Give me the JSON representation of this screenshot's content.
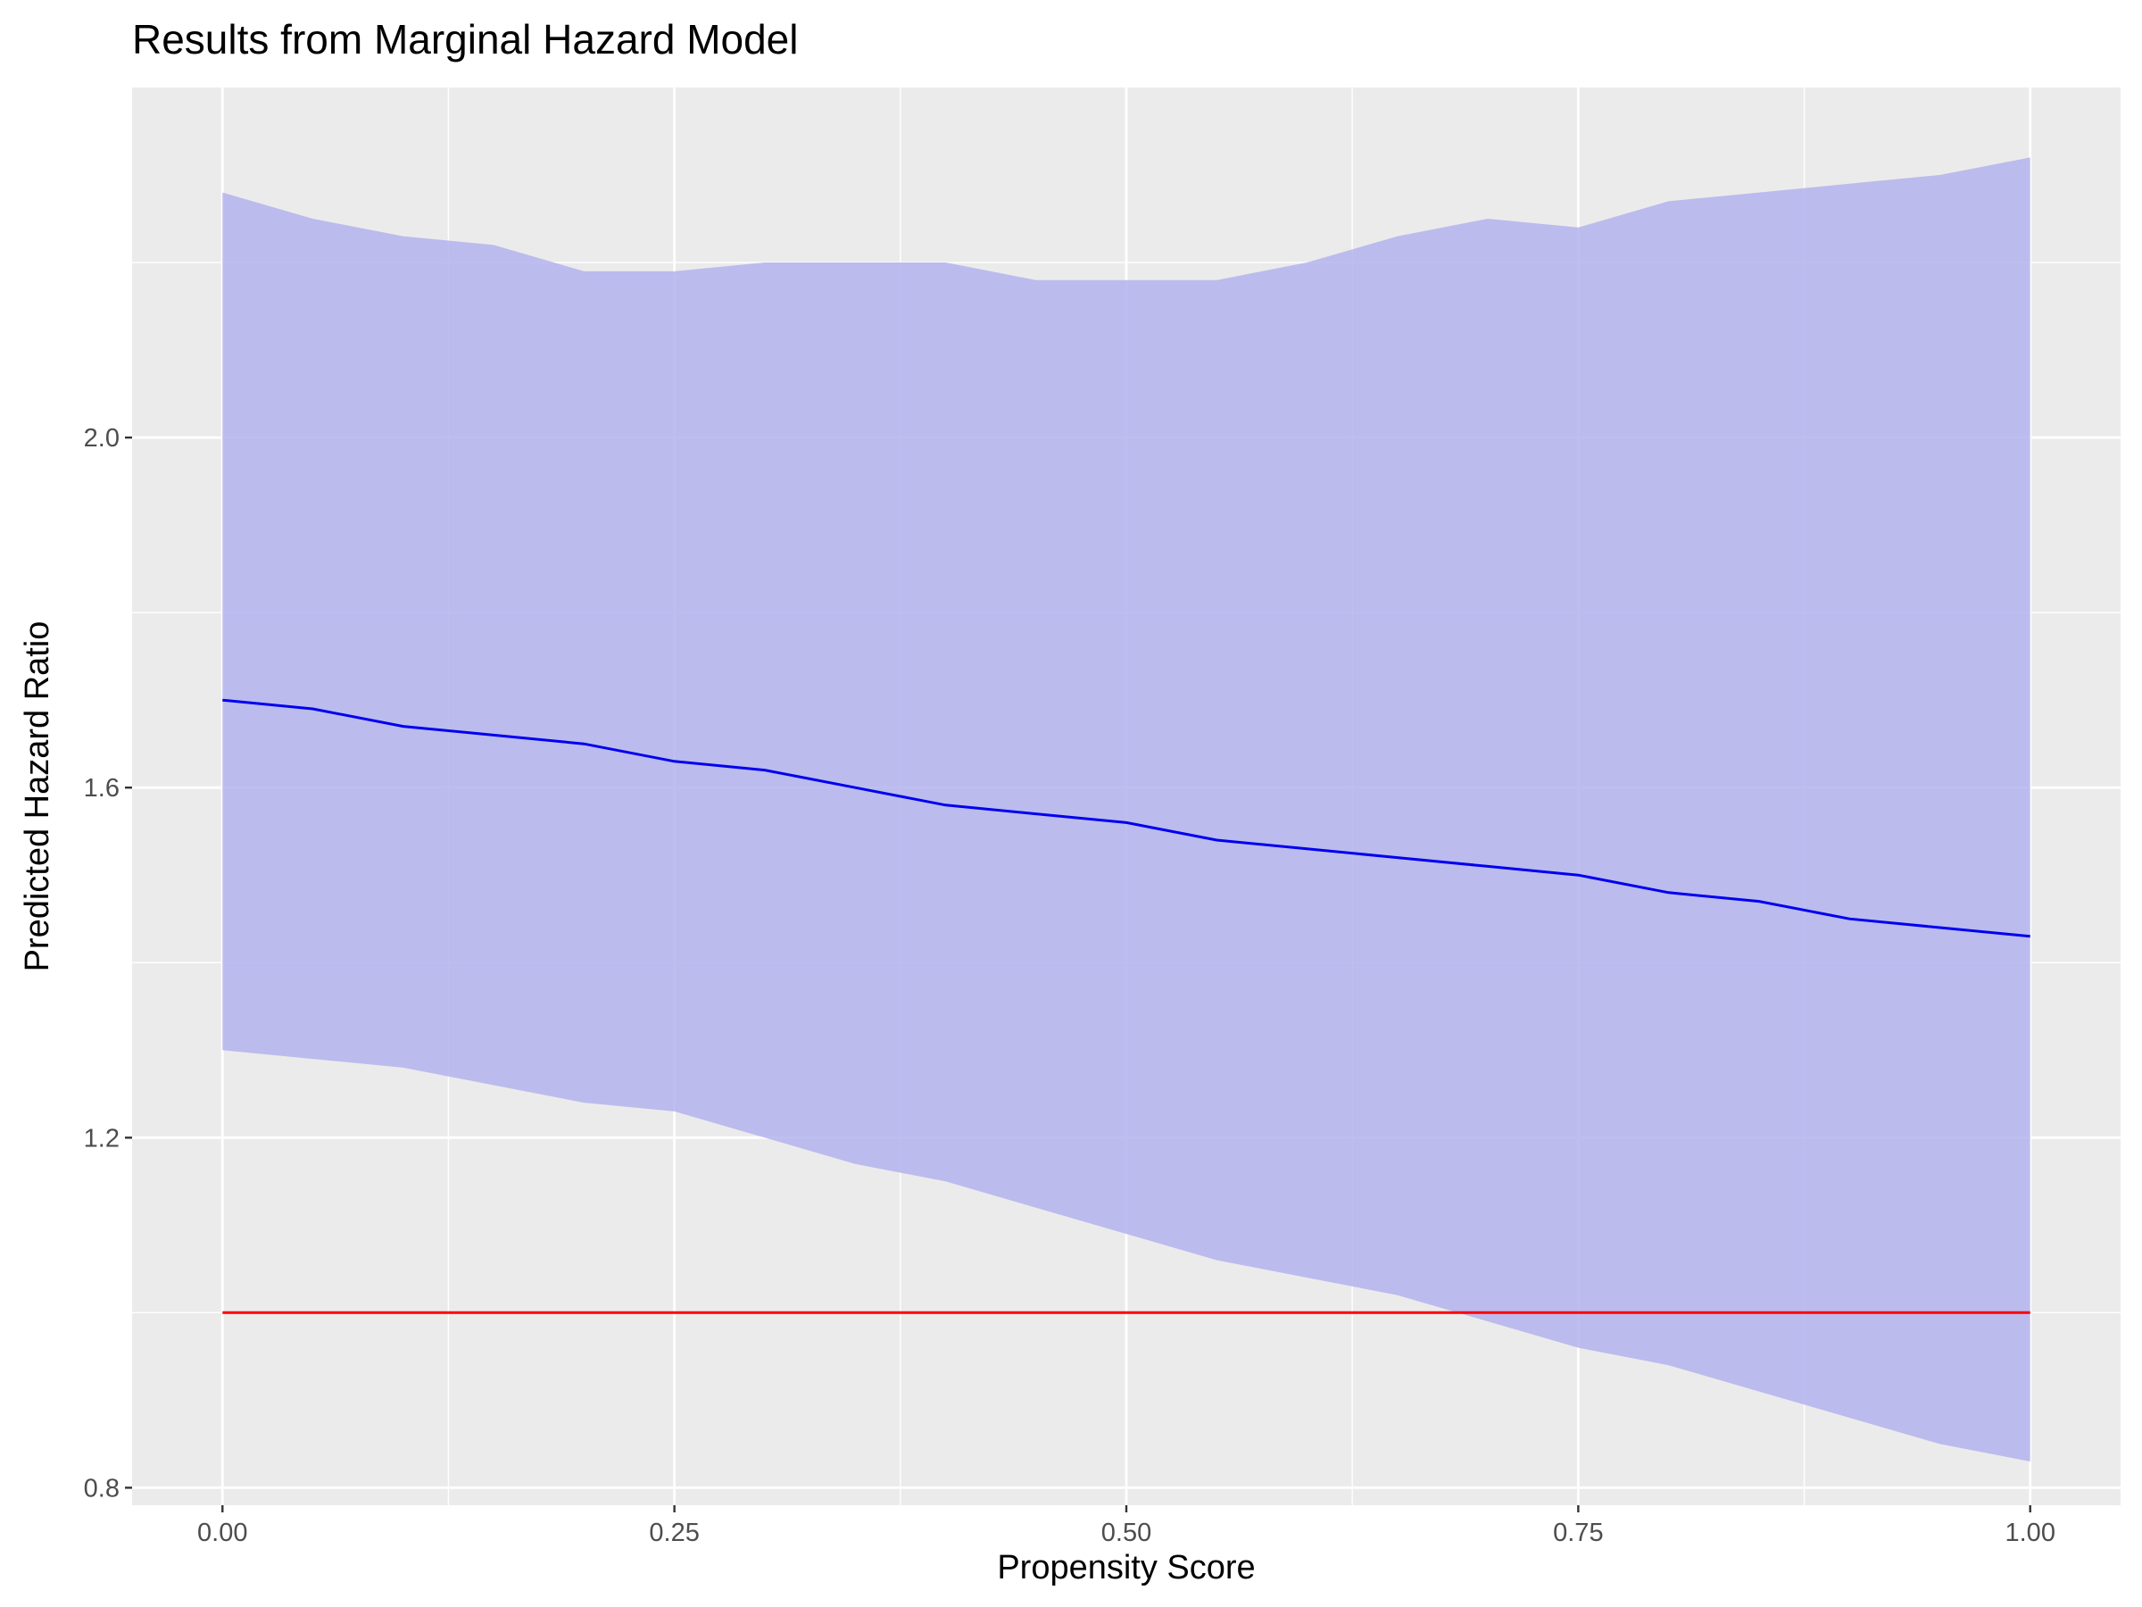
{
  "chart_data": {
    "type": "area",
    "title": "Results from Marginal Hazard Model",
    "xlabel": "Propensity Score",
    "ylabel": "Predicted Hazard Ratio",
    "xlim": [
      -0.05,
      1.05
    ],
    "ylim": [
      0.78,
      2.4
    ],
    "x_ticks": [
      0.0,
      0.25,
      0.5,
      0.75,
      1.0
    ],
    "x_tick_labels": [
      "0.00",
      "0.25",
      "0.50",
      "0.75",
      "1.00"
    ],
    "y_ticks": [
      0.8,
      1.2,
      1.6,
      2.0
    ],
    "y_tick_labels": [
      "0.8",
      "1.2",
      "1.6",
      "2.0"
    ],
    "grid": true,
    "legend": "none",
    "colors": {
      "panel_background": "#ebebeb",
      "grid": "#ffffff",
      "ribbon": "#b3b3ee",
      "estimate_line": "#0000ee",
      "reference_line": "#ff0000"
    },
    "series": [
      {
        "kind": "ribbon",
        "x": [
          0.0,
          0.05,
          0.1,
          0.15,
          0.2,
          0.25,
          0.3,
          0.35,
          0.4,
          0.45,
          0.5,
          0.55,
          0.6,
          0.65,
          0.7,
          0.75,
          0.8,
          0.85,
          0.9,
          0.95,
          1.0
        ],
        "upper": [
          2.28,
          2.25,
          2.23,
          2.22,
          2.19,
          2.19,
          2.2,
          2.2,
          2.2,
          2.18,
          2.18,
          2.18,
          2.2,
          2.23,
          2.25,
          2.24,
          2.27,
          2.28,
          2.29,
          2.3,
          2.32
        ],
        "lower": [
          1.3,
          1.29,
          1.28,
          1.26,
          1.24,
          1.23,
          1.2,
          1.17,
          1.15,
          1.12,
          1.09,
          1.06,
          1.04,
          1.02,
          0.99,
          0.96,
          0.94,
          0.91,
          0.88,
          0.85,
          0.83
        ]
      },
      {
        "kind": "line",
        "x": [
          0.0,
          0.05,
          0.1,
          0.15,
          0.2,
          0.25,
          0.3,
          0.35,
          0.4,
          0.45,
          0.5,
          0.55,
          0.6,
          0.65,
          0.7,
          0.75,
          0.8,
          0.85,
          0.9,
          0.95,
          1.0
        ],
        "y": [
          1.7,
          1.69,
          1.67,
          1.66,
          1.65,
          1.63,
          1.62,
          1.6,
          1.58,
          1.57,
          1.56,
          1.54,
          1.53,
          1.52,
          1.51,
          1.5,
          1.48,
          1.47,
          1.45,
          1.44,
          1.43
        ]
      },
      {
        "kind": "reference",
        "x": [
          0.0,
          1.0
        ],
        "y": [
          1.0,
          1.0
        ]
      }
    ]
  }
}
